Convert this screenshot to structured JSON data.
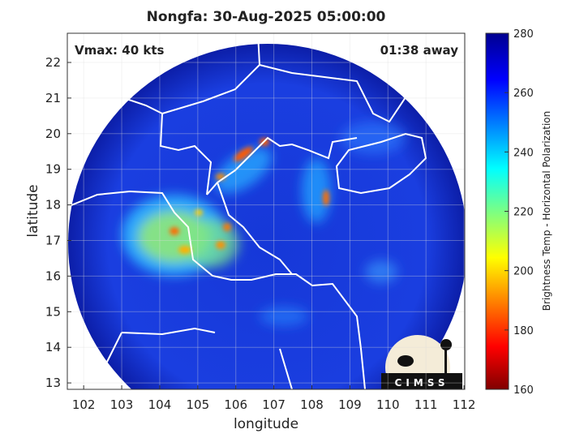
{
  "title": "Nongfa: 30-Aug-2025 05:00:00",
  "annotations": {
    "vmax": "Vmax: 40 kts",
    "time_away": "01:38 away"
  },
  "map": {
    "xlabel": "longitude",
    "ylabel": "latitude",
    "xlim": [
      101.57,
      112.02
    ],
    "ylim": [
      12.82,
      22.82
    ],
    "xticks": [
      102,
      103,
      104,
      105,
      106,
      107,
      108,
      109,
      110,
      111,
      112
    ],
    "yticks": [
      13,
      14,
      15,
      16,
      17,
      18,
      19,
      20,
      21,
      22
    ],
    "grid": true
  },
  "colorbar": {
    "label": "Brightness Temp - Horizontal Polarization",
    "lim": [
      160,
      280
    ],
    "ticks": [
      160,
      180,
      200,
      220,
      240,
      260,
      280
    ]
  },
  "logo": "CIMSS"
}
